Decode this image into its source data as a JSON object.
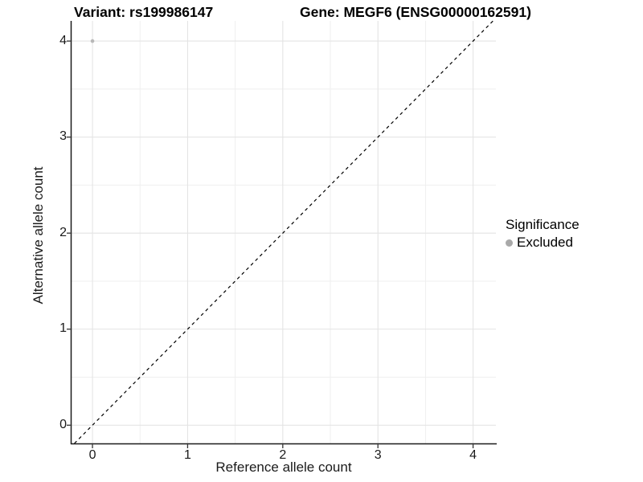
{
  "titles": {
    "variant": "Variant: rs199986147",
    "gene": "Gene: MEGF6 (ENSG00000162591)"
  },
  "axes": {
    "x_label": "Reference allele count",
    "y_label": "Alternative allele count"
  },
  "legend": {
    "title": "Significance",
    "items": [
      {
        "label": "Excluded",
        "color": "#a9a9a9"
      }
    ],
    "position": "right"
  },
  "chart_data": {
    "type": "scatter",
    "title": "Variant: rs199986147 | Gene: MEGF6 (ENSG00000162591)",
    "xlabel": "Reference allele count",
    "ylabel": "Alternative allele count",
    "xlim": [
      -0.22,
      4.24
    ],
    "ylim": [
      -0.19,
      4.21
    ],
    "x_ticks": [
      0,
      1,
      2,
      3,
      4
    ],
    "y_ticks": [
      0,
      1,
      2,
      3,
      4
    ],
    "x_minor_gridlines": [
      0.5,
      1.5,
      2.5,
      3.5
    ],
    "y_minor_gridlines": [
      0.5,
      1.5,
      2.5,
      3.5
    ],
    "grid": "major+minor",
    "legend_position": "right",
    "series": [
      {
        "name": "Excluded",
        "color": "#b8b8b8",
        "points": [
          {
            "x": 0,
            "y": 4
          }
        ]
      }
    ],
    "reference_line": {
      "type": "identity",
      "slope": 1,
      "intercept": 0,
      "style": "dashed",
      "color": "#000000"
    }
  },
  "colors": {
    "background": "#ffffff",
    "major_grid": "#e4e4e4",
    "minor_grid": "#efefef",
    "axis_line": "#1a1a1a",
    "tick_mark": "#333333",
    "point": "#b8b8b8",
    "legend_dot": "#a9a9a9"
  }
}
